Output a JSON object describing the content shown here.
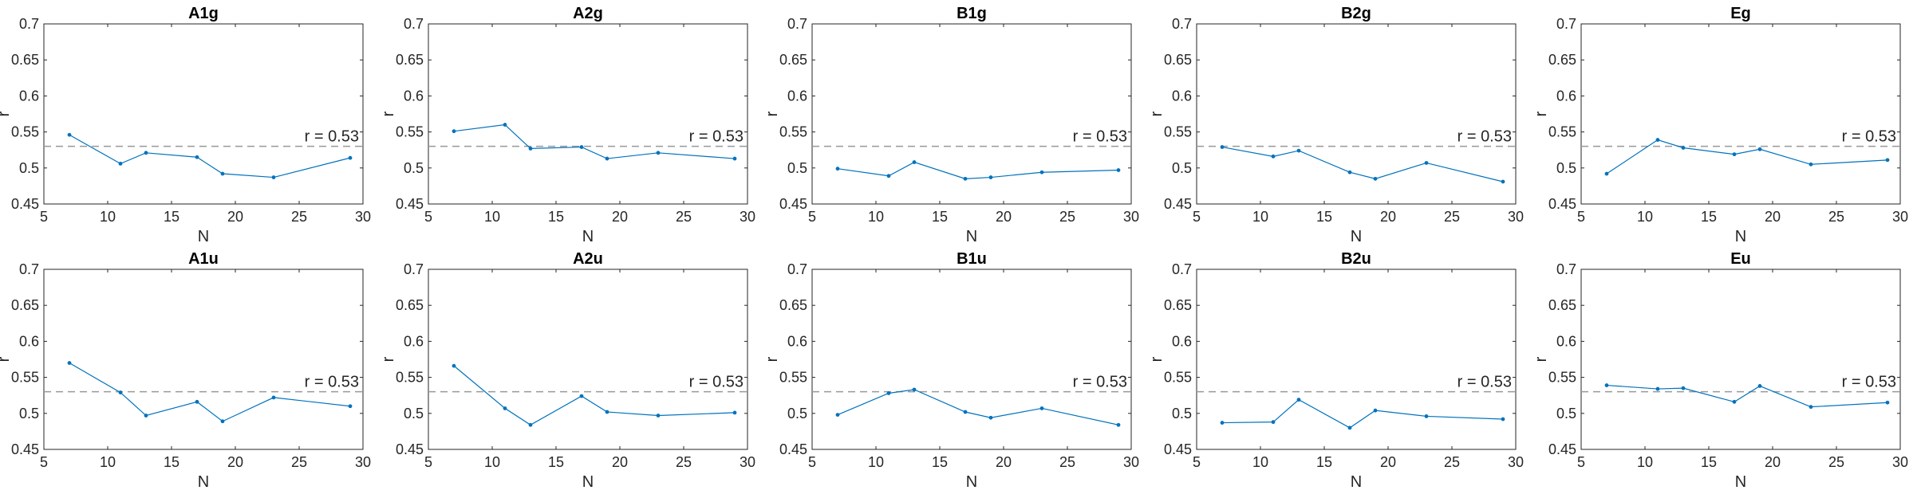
{
  "chart_data": [
    {
      "type": "line",
      "title": "A1g",
      "xlabel": "N",
      "ylabel": "r",
      "xlim": [
        5,
        30
      ],
      "ylim": [
        0.45,
        0.7
      ],
      "x_ticks": [
        "5",
        "10",
        "15",
        "20",
        "25",
        "30"
      ],
      "y_ticks": [
        "0.45",
        "0.5",
        "0.55",
        "0.6",
        "0.65",
        "0.7"
      ],
      "reference_line": {
        "value": 0.53,
        "label": "r = 0.53",
        "style": "dashed",
        "color": "#999999"
      },
      "grid": false,
      "series": [
        {
          "x": [
            7,
            11,
            13,
            17,
            19,
            23,
            29
          ],
          "y": [
            0.546,
            0.506,
            0.521,
            0.515,
            0.492,
            0.487,
            0.514
          ],
          "color": "#0072BD"
        }
      ]
    },
    {
      "type": "line",
      "title": "A2g",
      "xlabel": "N",
      "ylabel": "r",
      "xlim": [
        5,
        30
      ],
      "ylim": [
        0.45,
        0.7
      ],
      "x_ticks": [
        "5",
        "10",
        "15",
        "20",
        "25",
        "30"
      ],
      "y_ticks": [
        "0.45",
        "0.5",
        "0.55",
        "0.6",
        "0.65",
        "0.7"
      ],
      "reference_line": {
        "value": 0.53,
        "label": "r = 0.53",
        "style": "dashed",
        "color": "#999999"
      },
      "grid": false,
      "series": [
        {
          "x": [
            7,
            11,
            13,
            17,
            19,
            23,
            29
          ],
          "y": [
            0.551,
            0.56,
            0.527,
            0.529,
            0.513,
            0.521,
            0.513
          ],
          "color": "#0072BD"
        }
      ]
    },
    {
      "type": "line",
      "title": "B1g",
      "xlabel": "N",
      "ylabel": "r",
      "xlim": [
        5,
        30
      ],
      "ylim": [
        0.45,
        0.7
      ],
      "x_ticks": [
        "5",
        "10",
        "15",
        "20",
        "25",
        "30"
      ],
      "y_ticks": [
        "0.45",
        "0.5",
        "0.55",
        "0.6",
        "0.65",
        "0.7"
      ],
      "reference_line": {
        "value": 0.53,
        "label": "r = 0.53",
        "style": "dashed",
        "color": "#999999"
      },
      "grid": false,
      "series": [
        {
          "x": [
            7,
            11,
            13,
            17,
            19,
            23,
            29
          ],
          "y": [
            0.499,
            0.489,
            0.508,
            0.485,
            0.487,
            0.494,
            0.497
          ],
          "color": "#0072BD"
        }
      ]
    },
    {
      "type": "line",
      "title": "B2g",
      "xlabel": "N",
      "ylabel": "r",
      "xlim": [
        5,
        30
      ],
      "ylim": [
        0.45,
        0.7
      ],
      "x_ticks": [
        "5",
        "10",
        "15",
        "20",
        "25",
        "30"
      ],
      "y_ticks": [
        "0.45",
        "0.5",
        "0.55",
        "0.6",
        "0.65",
        "0.7"
      ],
      "reference_line": {
        "value": 0.53,
        "label": "r = 0.53",
        "style": "dashed",
        "color": "#999999"
      },
      "grid": false,
      "series": [
        {
          "x": [
            7,
            11,
            13,
            17,
            19,
            23,
            29
          ],
          "y": [
            0.529,
            0.516,
            0.524,
            0.494,
            0.485,
            0.507,
            0.481
          ],
          "color": "#0072BD"
        }
      ]
    },
    {
      "type": "line",
      "title": "Eg",
      "xlabel": "N",
      "ylabel": "r",
      "xlim": [
        5,
        30
      ],
      "ylim": [
        0.45,
        0.7
      ],
      "x_ticks": [
        "5",
        "10",
        "15",
        "20",
        "25",
        "30"
      ],
      "y_ticks": [
        "0.45",
        "0.5",
        "0.55",
        "0.6",
        "0.65",
        "0.7"
      ],
      "reference_line": {
        "value": 0.53,
        "label": "r = 0.53",
        "style": "dashed",
        "color": "#999999"
      },
      "grid": false,
      "series": [
        {
          "x": [
            7,
            11,
            13,
            17,
            19,
            23,
            29
          ],
          "y": [
            0.492,
            0.539,
            0.528,
            0.519,
            0.526,
            0.505,
            0.511
          ],
          "color": "#0072BD"
        }
      ]
    },
    {
      "type": "line",
      "title": "A1u",
      "xlabel": "N",
      "ylabel": "r",
      "xlim": [
        5,
        30
      ],
      "ylim": [
        0.45,
        0.7
      ],
      "x_ticks": [
        "5",
        "10",
        "15",
        "20",
        "25",
        "30"
      ],
      "y_ticks": [
        "0.45",
        "0.5",
        "0.55",
        "0.6",
        "0.65",
        "0.7"
      ],
      "reference_line": {
        "value": 0.53,
        "label": "r = 0.53",
        "style": "dashed",
        "color": "#999999"
      },
      "grid": false,
      "series": [
        {
          "x": [
            7,
            11,
            13,
            17,
            19,
            23,
            29
          ],
          "y": [
            0.57,
            0.529,
            0.497,
            0.516,
            0.489,
            0.522,
            0.51
          ],
          "color": "#0072BD"
        }
      ]
    },
    {
      "type": "line",
      "title": "A2u",
      "xlabel": "N",
      "ylabel": "r",
      "xlim": [
        5,
        30
      ],
      "ylim": [
        0.45,
        0.7
      ],
      "x_ticks": [
        "5",
        "10",
        "15",
        "20",
        "25",
        "30"
      ],
      "y_ticks": [
        "0.45",
        "0.5",
        "0.55",
        "0.6",
        "0.65",
        "0.7"
      ],
      "reference_line": {
        "value": 0.53,
        "label": "r = 0.53",
        "style": "dashed",
        "color": "#999999"
      },
      "grid": false,
      "series": [
        {
          "x": [
            7,
            11,
            13,
            17,
            19,
            23,
            29
          ],
          "y": [
            0.566,
            0.507,
            0.484,
            0.524,
            0.502,
            0.497,
            0.501
          ],
          "color": "#0072BD"
        }
      ]
    },
    {
      "type": "line",
      "title": "B1u",
      "xlabel": "N",
      "ylabel": "r",
      "xlim": [
        5,
        30
      ],
      "ylim": [
        0.45,
        0.7
      ],
      "x_ticks": [
        "5",
        "10",
        "15",
        "20",
        "25",
        "30"
      ],
      "y_ticks": [
        "0.45",
        "0.5",
        "0.55",
        "0.6",
        "0.65",
        "0.7"
      ],
      "reference_line": {
        "value": 0.53,
        "label": "r = 0.53",
        "style": "dashed",
        "color": "#999999"
      },
      "grid": false,
      "series": [
        {
          "x": [
            7,
            11,
            13,
            17,
            19,
            23,
            29
          ],
          "y": [
            0.498,
            0.528,
            0.533,
            0.502,
            0.494,
            0.507,
            0.484
          ],
          "color": "#0072BD"
        }
      ]
    },
    {
      "type": "line",
      "title": "B2u",
      "xlabel": "N",
      "ylabel": "r",
      "xlim": [
        5,
        30
      ],
      "ylim": [
        0.45,
        0.7
      ],
      "x_ticks": [
        "5",
        "10",
        "15",
        "20",
        "25",
        "30"
      ],
      "y_ticks": [
        "0.45",
        "0.5",
        "0.55",
        "0.6",
        "0.65",
        "0.7"
      ],
      "reference_line": {
        "value": 0.53,
        "label": "r = 0.53",
        "style": "dashed",
        "color": "#999999"
      },
      "grid": false,
      "series": [
        {
          "x": [
            7,
            11,
            13,
            17,
            19,
            23,
            29
          ],
          "y": [
            0.487,
            0.488,
            0.519,
            0.48,
            0.504,
            0.496,
            0.492
          ],
          "color": "#0072BD"
        }
      ]
    },
    {
      "type": "line",
      "title": "Eu",
      "xlabel": "N",
      "ylabel": "r",
      "xlim": [
        5,
        30
      ],
      "ylim": [
        0.45,
        0.7
      ],
      "x_ticks": [
        "5",
        "10",
        "15",
        "20",
        "25",
        "30"
      ],
      "y_ticks": [
        "0.45",
        "0.5",
        "0.55",
        "0.6",
        "0.65",
        "0.7"
      ],
      "reference_line": {
        "value": 0.53,
        "label": "r = 0.53",
        "style": "dashed",
        "color": "#999999"
      },
      "grid": false,
      "series": [
        {
          "x": [
            7,
            11,
            13,
            17,
            19,
            23,
            29
          ],
          "y": [
            0.539,
            0.534,
            0.535,
            0.516,
            0.538,
            0.509,
            0.515
          ],
          "color": "#0072BD"
        }
      ]
    }
  ]
}
